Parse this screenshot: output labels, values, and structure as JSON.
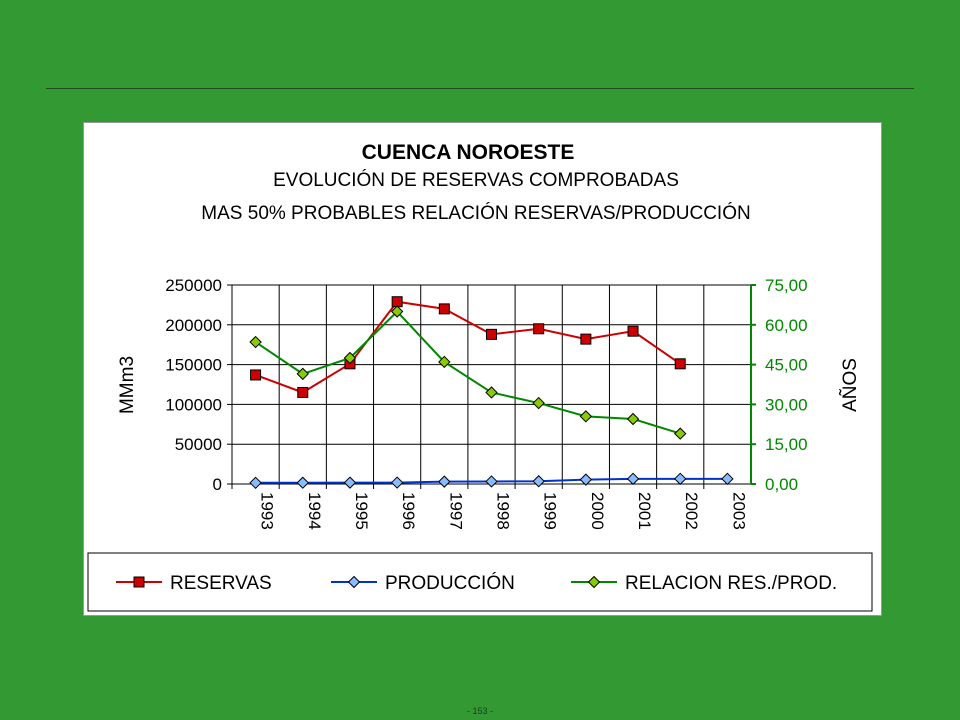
{
  "page": {
    "number": "- 153 -"
  },
  "colors": {
    "background": "#339933",
    "reservas": "#cc0000",
    "produccion": "#0033cc",
    "relacion": "#008800",
    "marker_reservas": "#cc0000",
    "marker_produccion": "#88bbff",
    "marker_relacion": "#88cc00"
  },
  "chart_data": {
    "type": "line",
    "title": "CUENCA NOROESTE",
    "subtitle_1": "EVOLUCIÓN DE RESERVAS COMPROBADAS",
    "subtitle_2": "MAS 50% PROBABLES  RELACIÓN RESERVAS/PRODUCCIÓN",
    "ylabel_left": "MMm3",
    "ylabel_right": "AÑOS",
    "categories": [
      "1993",
      "1994",
      "1995",
      "1996",
      "1997",
      "1998",
      "1999",
      "2000",
      "2001",
      "2002",
      "2003"
    ],
    "ylim_left": [
      0,
      250000
    ],
    "yticks_left": [
      "250000",
      "200000",
      "150000",
      "100000",
      "50000",
      "0"
    ],
    "ylim_right": [
      0,
      75
    ],
    "yticks_right": [
      "75,00",
      "60,00",
      "45,00",
      "30,00",
      "15,00",
      "0,00"
    ],
    "grid": true,
    "legend_position": "bottom",
    "series": [
      {
        "name": "RESERVAS",
        "axis": "left",
        "marker": "square",
        "values": [
          137000,
          115000,
          151000,
          229000,
          220000,
          188000,
          195000,
          182000,
          192000,
          151000,
          null
        ]
      },
      {
        "name": "PRODUCCIÓN",
        "axis": "left",
        "marker": "diamond",
        "values": [
          1500,
          1600,
          1700,
          1800,
          3000,
          3200,
          3500,
          5500,
          6500,
          6500,
          6500
        ]
      },
      {
        "name": "RELACION RES./PROD.",
        "axis": "right",
        "marker": "diamond",
        "values": [
          53.5,
          41.5,
          47.5,
          65,
          46,
          34.5,
          30.5,
          25.5,
          24.5,
          19,
          null
        ]
      }
    ]
  }
}
